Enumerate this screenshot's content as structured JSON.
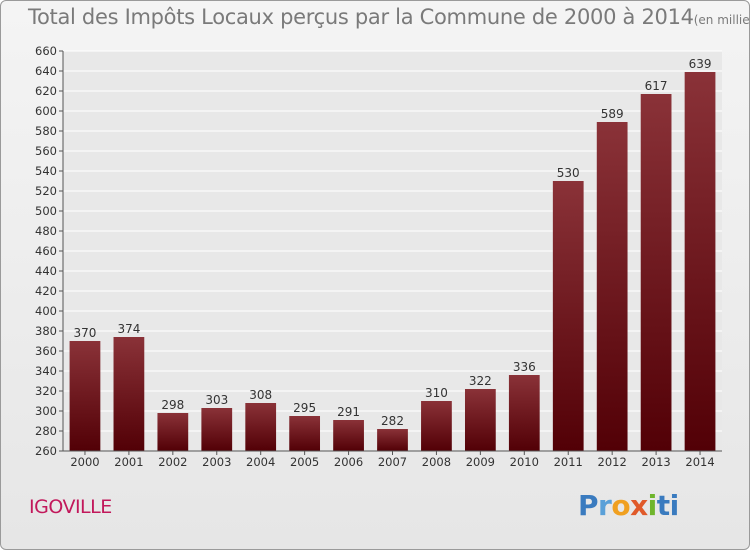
{
  "title": "Total des Impôts Locaux perçus par la Commune de 2000 à 2014",
  "subtitle": "(en milliers d'€)",
  "commune": "IGOVILLE",
  "logo": "Proxiti",
  "colors": {
    "bar_top": "#8a3238",
    "bar_bottom": "#520006",
    "grid": "#ffffff",
    "title": "#7a7a7a",
    "commune": "#c2185b"
  },
  "chart_data": {
    "type": "bar",
    "title": "Total des Impôts Locaux perçus par la Commune de 2000 à 2014",
    "subtitle": "(en milliers d'€)",
    "xlabel": "",
    "ylabel": "",
    "categories": [
      "2000",
      "2001",
      "2002",
      "2003",
      "2004",
      "2005",
      "2006",
      "2007",
      "2008",
      "2009",
      "2010",
      "2011",
      "2012",
      "2013",
      "2014"
    ],
    "values": [
      370,
      374,
      298,
      303,
      308,
      295,
      291,
      282,
      310,
      322,
      336,
      530,
      589,
      617,
      639
    ],
    "ylim": [
      260,
      660
    ],
    "yticks": [
      260,
      280,
      300,
      320,
      340,
      360,
      380,
      400,
      420,
      440,
      460,
      480,
      500,
      520,
      540,
      560,
      580,
      600,
      620,
      640,
      660
    ],
    "grid": true,
    "data_labels": true
  }
}
